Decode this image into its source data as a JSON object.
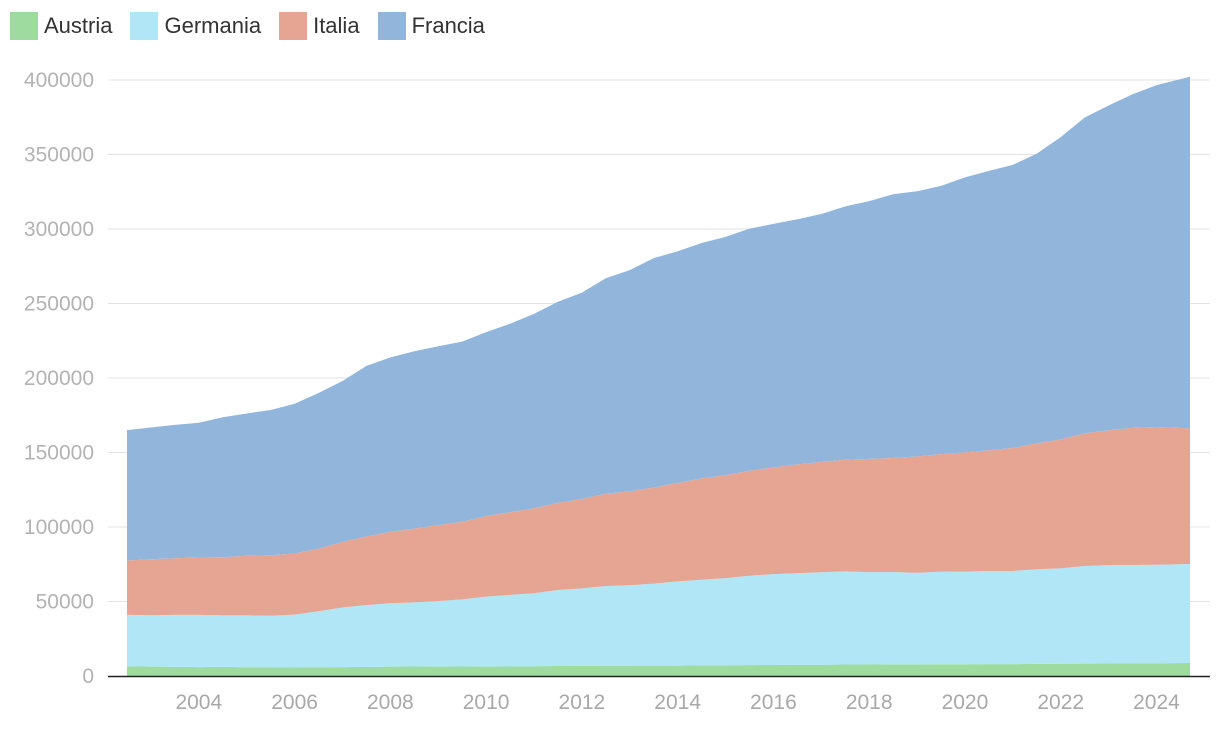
{
  "chart_data": {
    "type": "area",
    "stacked": true,
    "title": "",
    "xlabel": "",
    "ylabel": "",
    "x": [
      2002.5,
      2003.0,
      2003.5,
      2004.0,
      2004.5,
      2005.0,
      2005.5,
      2006.0,
      2006.5,
      2007.0,
      2007.5,
      2008.0,
      2008.5,
      2009.0,
      2009.5,
      2010.0,
      2010.5,
      2011.0,
      2011.5,
      2012.0,
      2012.5,
      2013.0,
      2013.5,
      2014.0,
      2014.5,
      2015.0,
      2015.5,
      2016.0,
      2016.5,
      2017.0,
      2017.5,
      2018.0,
      2018.5,
      2019.0,
      2019.5,
      2020.0,
      2020.5,
      2021.0,
      2021.5,
      2022.0,
      2022.5,
      2023.0,
      2023.5,
      2024.0,
      2024.7
    ],
    "xlim": [
      2002.5,
      2024.7
    ],
    "ylim": [
      0,
      400000
    ],
    "x_ticks": [
      "2004",
      "2006",
      "2008",
      "2010",
      "2012",
      "2014",
      "2016",
      "2018",
      "2020",
      "2022",
      "2024"
    ],
    "y_ticks": [
      "0",
      "50000",
      "100000",
      "150000",
      "200000",
      "250000",
      "300000",
      "350000",
      "400000"
    ],
    "legend_position": "top-left",
    "series": [
      {
        "name": "Austria",
        "color": "#9ddb9f",
        "values": [
          6500,
          6300,
          6200,
          6000,
          6100,
          5900,
          5800,
          5700,
          5900,
          6000,
          6100,
          6300,
          6400,
          6300,
          6400,
          6300,
          6400,
          6500,
          6700,
          6800,
          6900,
          6900,
          7000,
          7000,
          7100,
          7200,
          7300,
          7400,
          7500,
          7600,
          7700,
          7700,
          7800,
          7800,
          7900,
          7900,
          8000,
          8000,
          8100,
          8200,
          8300,
          8400,
          8500,
          8600,
          8700
        ]
      },
      {
        "name": "Germania",
        "color": "#b1e6f7",
        "values": [
          34500,
          34500,
          34800,
          35000,
          34600,
          34800,
          34700,
          35500,
          37500,
          40000,
          41500,
          42500,
          43000,
          44000,
          45000,
          47000,
          48000,
          49000,
          51000,
          52000,
          53500,
          54000,
          55000,
          56500,
          57500,
          58500,
          60000,
          61000,
          61500,
          62000,
          62500,
          62000,
          62000,
          61500,
          62000,
          62200,
          62500,
          62500,
          63500,
          64000,
          65500,
          66000,
          66000,
          66000,
          66500
        ]
      },
      {
        "name": "Italia",
        "color": "#e6a592",
        "values": [
          36500,
          37500,
          38000,
          38500,
          39000,
          40000,
          40500,
          41000,
          42000,
          44000,
          46000,
          48000,
          49500,
          51000,
          52000,
          54000,
          55500,
          57000,
          58500,
          60000,
          62000,
          63000,
          64500,
          66000,
          68000,
          69000,
          70500,
          71500,
          73000,
          74000,
          75000,
          76000,
          76500,
          78000,
          79000,
          80000,
          81000,
          82500,
          84500,
          86500,
          89000,
          90500,
          92000,
          92500,
          91000
        ]
      },
      {
        "name": "Francia",
        "color": "#92b6db",
        "values": [
          87500,
          88500,
          89500,
          90500,
          94000,
          95500,
          97500,
          100500,
          104500,
          108000,
          114500,
          117000,
          119000,
          120000,
          121000,
          123500,
          126500,
          130500,
          135000,
          138500,
          144500,
          148500,
          154000,
          155500,
          158000,
          160000,
          162500,
          163500,
          164500,
          166500,
          170000,
          173000,
          177000,
          178000,
          180000,
          184500,
          187500,
          190000,
          194500,
          203000,
          212000,
          218000,
          224000,
          229500,
          236000
        ]
      }
    ]
  }
}
